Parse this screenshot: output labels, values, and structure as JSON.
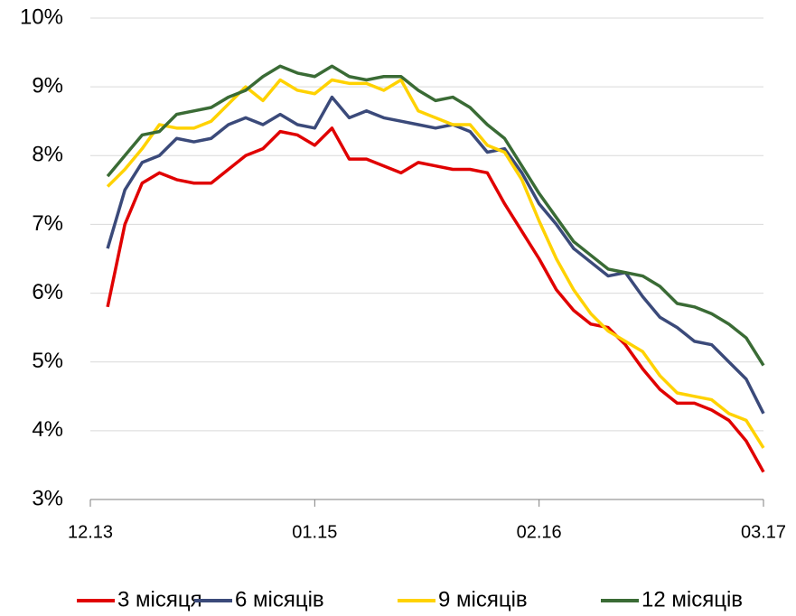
{
  "chart_data": {
    "type": "line",
    "x": [
      "01.14",
      "02.14",
      "03.14",
      "04.14",
      "05.14",
      "06.14",
      "07.14",
      "08.14",
      "09.14",
      "10.14",
      "11.14",
      "12.14",
      "01.15",
      "02.15",
      "03.15",
      "04.15",
      "05.15",
      "06.15",
      "07.15",
      "08.15",
      "09.15",
      "10.15",
      "11.15",
      "12.15",
      "01.16",
      "02.16",
      "03.16",
      "04.16",
      "05.16",
      "06.16",
      "07.16",
      "08.16",
      "09.16",
      "10.16",
      "11.16",
      "12.16",
      "01.17",
      "02.17",
      "03.17"
    ],
    "series": [
      {
        "name": "3 місяця",
        "color": "#e00000",
        "values": [
          5.8,
          7.0,
          7.6,
          7.75,
          7.65,
          7.6,
          7.6,
          7.8,
          8.0,
          8.1,
          8.35,
          8.3,
          8.15,
          8.4,
          7.95,
          7.95,
          7.85,
          7.75,
          7.9,
          7.85,
          7.8,
          7.8,
          7.75,
          7.3,
          6.9,
          6.5,
          6.05,
          5.75,
          5.55,
          5.5,
          5.25,
          4.9,
          4.6,
          4.4,
          4.4,
          4.3,
          4.15,
          3.85,
          3.4
        ]
      },
      {
        "name": "6 місяців",
        "color": "#3b4a7a",
        "values": [
          6.65,
          7.5,
          7.9,
          8.0,
          8.25,
          8.2,
          8.25,
          8.45,
          8.55,
          8.45,
          8.6,
          8.45,
          8.4,
          8.85,
          8.55,
          8.65,
          8.55,
          8.5,
          8.45,
          8.4,
          8.45,
          8.35,
          8.05,
          8.1,
          7.75,
          7.3,
          7.0,
          6.65,
          6.45,
          6.25,
          6.3,
          5.95,
          5.65,
          5.5,
          5.3,
          5.25,
          5.0,
          4.75,
          4.25
        ]
      },
      {
        "name": "9 місяців",
        "color": "#ffd200",
        "values": [
          7.55,
          7.8,
          8.1,
          8.45,
          8.4,
          8.4,
          8.5,
          8.75,
          9.0,
          8.8,
          9.1,
          8.95,
          8.9,
          9.1,
          9.05,
          9.05,
          8.95,
          9.1,
          8.65,
          8.55,
          8.45,
          8.45,
          8.15,
          8.05,
          7.65,
          7.05,
          6.5,
          6.05,
          5.7,
          5.45,
          5.3,
          5.15,
          4.8,
          4.55,
          4.5,
          4.45,
          4.25,
          4.15,
          3.75
        ]
      },
      {
        "name": "12 місяців",
        "color": "#3a6b35",
        "values": [
          7.7,
          8.0,
          8.3,
          8.35,
          8.6,
          8.65,
          8.7,
          8.85,
          8.95,
          9.15,
          9.3,
          9.2,
          9.15,
          9.3,
          9.15,
          9.1,
          9.15,
          9.15,
          8.95,
          8.8,
          8.85,
          8.7,
          8.45,
          8.25,
          7.85,
          7.45,
          7.1,
          6.75,
          6.55,
          6.35,
          6.3,
          6.25,
          6.1,
          5.85,
          5.8,
          5.7,
          5.55,
          5.35,
          4.95
        ]
      }
    ],
    "xlim": [
      "12.13",
      "03.17"
    ],
    "xticks": [
      "12.13",
      "01.15",
      "02.16",
      "03.17"
    ],
    "ylim": [
      3,
      10
    ],
    "yticks": [
      {
        "value": 3,
        "label": "3%"
      },
      {
        "value": 4,
        "label": "4%"
      },
      {
        "value": 5,
        "label": "5%"
      },
      {
        "value": 6,
        "label": "6%"
      },
      {
        "value": 7,
        "label": "7%"
      },
      {
        "value": 8,
        "label": "8%"
      },
      {
        "value": 9,
        "label": "9%"
      },
      {
        "value": 10,
        "label": "10%"
      }
    ],
    "grid": true,
    "legend": "bottom"
  }
}
